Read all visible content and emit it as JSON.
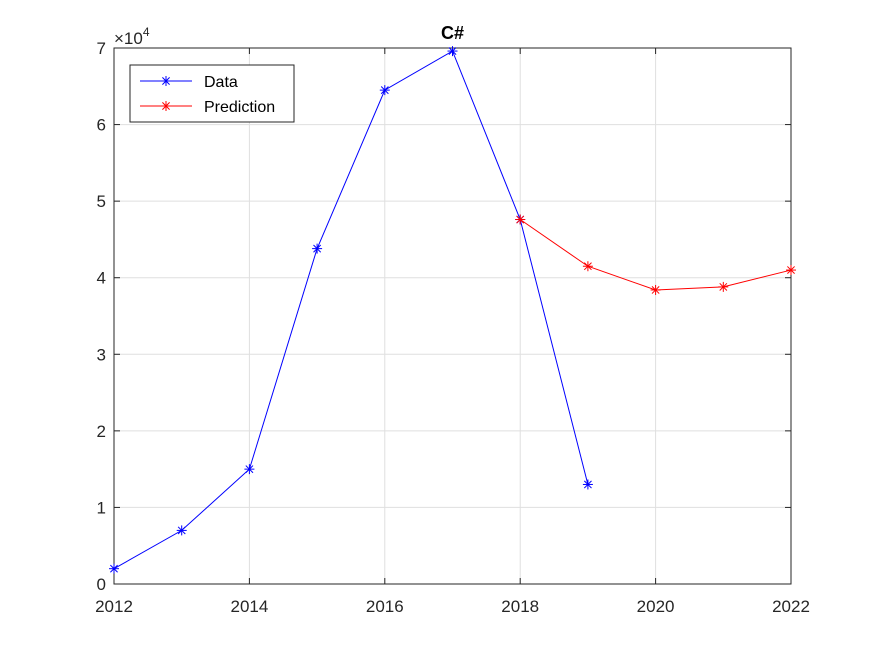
{
  "chart_data": {
    "type": "line",
    "title": "C#",
    "xlabel": "",
    "ylabel": "",
    "xlim": [
      2012,
      2022
    ],
    "ylim": [
      0,
      70000
    ],
    "x_ticks": [
      2012,
      2014,
      2016,
      2018,
      2020,
      2022
    ],
    "y_ticks": [
      0,
      1,
      2,
      3,
      4,
      5,
      6,
      7
    ],
    "y_exponent_label": "×10",
    "y_exponent_power": "4",
    "grid": true,
    "legend_position": "top-left",
    "series": [
      {
        "name": "Data",
        "color": "#0000ff",
        "marker": "asterisk",
        "x": [
          2012,
          2013,
          2014,
          2015,
          2016,
          2017,
          2018,
          2019
        ],
        "y": [
          2000,
          7000,
          15000,
          43800,
          64500,
          69600,
          47600,
          13000
        ]
      },
      {
        "name": "Prediction",
        "color": "#ff0000",
        "marker": "asterisk",
        "x": [
          2018,
          2019,
          2020,
          2021,
          2022
        ],
        "y": [
          47600,
          41500,
          38400,
          38800,
          41000
        ]
      }
    ]
  }
}
